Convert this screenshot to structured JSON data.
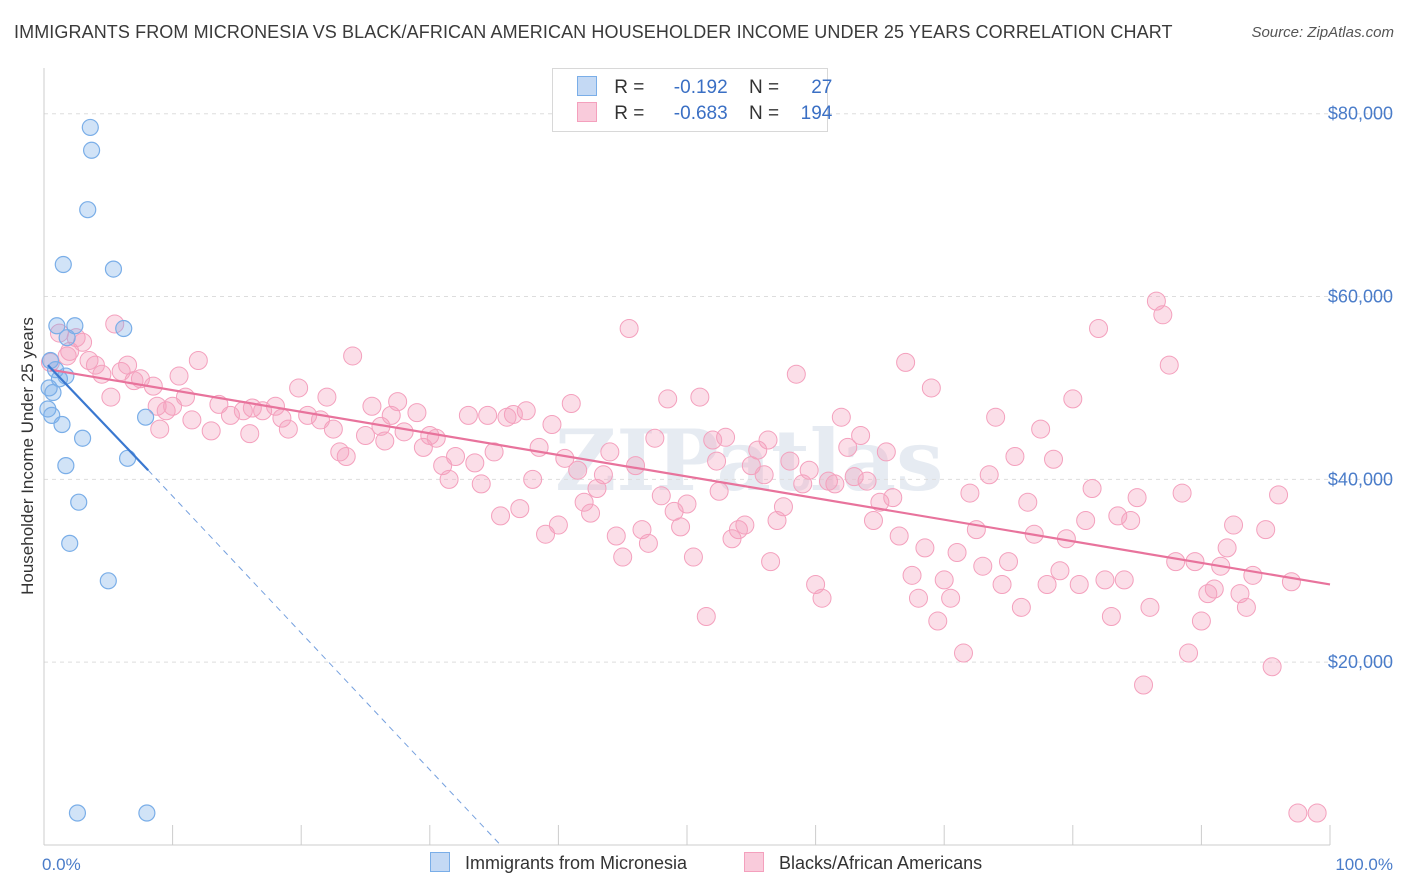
{
  "title": "IMMIGRANTS FROM MICRONESIA VS BLACK/AFRICAN AMERICAN HOUSEHOLDER INCOME UNDER 25 YEARS CORRELATION CHART",
  "source": "Source: ZipAtlas.com",
  "colors": {
    "blue": "#7aaee8",
    "blue_line": "#3a78d0",
    "pink": "#f4a0bd",
    "pink_line": "#e8739c",
    "grid": "#dddddd"
  },
  "legend": {
    "r_label": "R =",
    "n_label": "N =",
    "series1": {
      "r": "-0.192",
      "n": "27"
    },
    "series2": {
      "r": "-0.683",
      "n": "194"
    }
  },
  "chart_data": {
    "type": "scatter",
    "ylabel": "Householder Income Under 25 years",
    "xlim": [
      0,
      100
    ],
    "ylim": [
      0,
      85000
    ],
    "x_tick_labels": [
      "0.0%",
      "100.0%"
    ],
    "y_ticks": [
      20000,
      40000,
      60000,
      80000
    ],
    "y_tick_labels": [
      "$20,000",
      "$40,000",
      "$60,000",
      "$80,000"
    ],
    "grid": "horizontal dashed",
    "series": [
      {
        "name": "Immigrants from Micronesia",
        "color": "#7aaee8",
        "points": [
          [
            3.6,
            78500
          ],
          [
            3.7,
            76000
          ],
          [
            3.4,
            69500
          ],
          [
            1.5,
            63500
          ],
          [
            5.4,
            63000
          ],
          [
            1.0,
            56800
          ],
          [
            2.4,
            56800
          ],
          [
            6.2,
            56500
          ],
          [
            0.5,
            53000
          ],
          [
            1.2,
            51000
          ],
          [
            1.7,
            51300
          ],
          [
            0.4,
            50000
          ],
          [
            0.3,
            47700
          ],
          [
            0.6,
            47000
          ],
          [
            7.9,
            46800
          ],
          [
            1.4,
            46000
          ],
          [
            3.0,
            44500
          ],
          [
            1.7,
            41500
          ],
          [
            6.5,
            42300
          ],
          [
            2.7,
            37500
          ],
          [
            2.0,
            33000
          ],
          [
            5.0,
            28900
          ],
          [
            2.6,
            3500
          ],
          [
            8.0,
            3500
          ],
          [
            0.9,
            52000
          ],
          [
            1.8,
            55500
          ],
          [
            0.7,
            49500
          ]
        ],
        "trend": {
          "x": [
            0.3,
            8.1
          ],
          "y": [
            52500,
            41000
          ]
        },
        "trend_extended": {
          "x": [
            8.1,
            35.5
          ],
          "y": [
            41000,
            0
          ]
        }
      },
      {
        "name": "Blacks/African Americans",
        "color": "#f4a0bd",
        "points": [
          [
            1.2,
            56000
          ],
          [
            2.5,
            55500
          ],
          [
            5.5,
            57000
          ],
          [
            1.8,
            53500
          ],
          [
            3.5,
            53000
          ],
          [
            6.5,
            52500
          ],
          [
            0.5,
            52800
          ],
          [
            4.5,
            51500
          ],
          [
            7.5,
            51000
          ],
          [
            10.5,
            51300
          ],
          [
            8.5,
            50200
          ],
          [
            12.0,
            53000
          ],
          [
            5.2,
            49000
          ],
          [
            8.8,
            48000
          ],
          [
            10.0,
            48000
          ],
          [
            11.5,
            46500
          ],
          [
            9.0,
            45500
          ],
          [
            13.0,
            45300
          ],
          [
            13.6,
            48200
          ],
          [
            14.5,
            47000
          ],
          [
            15.5,
            47500
          ],
          [
            16.2,
            47800
          ],
          [
            17.0,
            47500
          ],
          [
            18.0,
            48000
          ],
          [
            19.0,
            45500
          ],
          [
            19.8,
            50000
          ],
          [
            20.5,
            47000
          ],
          [
            21.5,
            46500
          ],
          [
            22.0,
            49000
          ],
          [
            22.5,
            45500
          ],
          [
            23.0,
            43000
          ],
          [
            23.5,
            42500
          ],
          [
            24.0,
            53500
          ],
          [
            25.0,
            44800
          ],
          [
            25.5,
            48000
          ],
          [
            26.2,
            45800
          ],
          [
            27.0,
            47000
          ],
          [
            27.5,
            48500
          ],
          [
            28.0,
            45200
          ],
          [
            29.0,
            47300
          ],
          [
            29.5,
            43500
          ],
          [
            30.5,
            44500
          ],
          [
            31.0,
            41500
          ],
          [
            31.5,
            40000
          ],
          [
            32.0,
            42500
          ],
          [
            33.0,
            47000
          ],
          [
            33.5,
            41800
          ],
          [
            34.5,
            47000
          ],
          [
            35.0,
            43000
          ],
          [
            35.5,
            36000
          ],
          [
            36.0,
            46800
          ],
          [
            37.0,
            36800
          ],
          [
            37.5,
            47500
          ],
          [
            38.0,
            40000
          ],
          [
            38.5,
            43500
          ],
          [
            39.0,
            34000
          ],
          [
            39.5,
            46000
          ],
          [
            40.0,
            35000
          ],
          [
            40.5,
            42300
          ],
          [
            41.0,
            48300
          ],
          [
            41.5,
            41000
          ],
          [
            42.0,
            37500
          ],
          [
            42.5,
            36300
          ],
          [
            43.0,
            39000
          ],
          [
            43.5,
            40500
          ],
          [
            44.0,
            43000
          ],
          [
            44.5,
            33800
          ],
          [
            45.0,
            31500
          ],
          [
            45.5,
            56500
          ],
          [
            46.0,
            41500
          ],
          [
            46.5,
            34500
          ],
          [
            47.0,
            33000
          ],
          [
            47.5,
            44500
          ],
          [
            48.0,
            38200
          ],
          [
            48.5,
            48800
          ],
          [
            49.0,
            36500
          ],
          [
            49.5,
            34800
          ],
          [
            50.0,
            37300
          ],
          [
            50.5,
            31500
          ],
          [
            51.0,
            49000
          ],
          [
            51.5,
            25000
          ],
          [
            52.0,
            44300
          ],
          [
            52.5,
            38700
          ],
          [
            53.0,
            44600
          ],
          [
            53.5,
            33500
          ],
          [
            54.0,
            34500
          ],
          [
            54.5,
            35000
          ],
          [
            55.0,
            41500
          ],
          [
            55.5,
            43200
          ],
          [
            56.0,
            40500
          ],
          [
            56.5,
            31000
          ],
          [
            57.0,
            35500
          ],
          [
            57.5,
            37000
          ],
          [
            58.0,
            42000
          ],
          [
            58.5,
            51500
          ],
          [
            59.0,
            39500
          ],
          [
            59.5,
            41000
          ],
          [
            60.0,
            28500
          ],
          [
            60.5,
            27000
          ],
          [
            61.0,
            39800
          ],
          [
            61.5,
            39500
          ],
          [
            62.0,
            46800
          ],
          [
            62.5,
            43500
          ],
          [
            63.0,
            40300
          ],
          [
            63.5,
            44800
          ],
          [
            64.0,
            39800
          ],
          [
            64.5,
            35500
          ],
          [
            65.0,
            37500
          ],
          [
            65.5,
            43000
          ],
          [
            66.0,
            38000
          ],
          [
            66.5,
            33800
          ],
          [
            67.0,
            52800
          ],
          [
            67.5,
            29500
          ],
          [
            68.0,
            27000
          ],
          [
            68.5,
            32500
          ],
          [
            69.0,
            50000
          ],
          [
            69.5,
            24500
          ],
          [
            70.0,
            29000
          ],
          [
            70.5,
            27000
          ],
          [
            71.0,
            32000
          ],
          [
            71.5,
            21000
          ],
          [
            72.0,
            38500
          ],
          [
            72.5,
            34500
          ],
          [
            73.0,
            30500
          ],
          [
            73.5,
            40500
          ],
          [
            74.0,
            46800
          ],
          [
            74.5,
            28500
          ],
          [
            75.0,
            31000
          ],
          [
            75.5,
            42500
          ],
          [
            76.0,
            26000
          ],
          [
            76.5,
            37500
          ],
          [
            77.0,
            34000
          ],
          [
            77.5,
            45500
          ],
          [
            78.0,
            28500
          ],
          [
            78.5,
            42200
          ],
          [
            79.0,
            30000
          ],
          [
            79.5,
            33500
          ],
          [
            80.0,
            48800
          ],
          [
            80.5,
            28500
          ],
          [
            81.0,
            35500
          ],
          [
            81.5,
            39000
          ],
          [
            82.0,
            56500
          ],
          [
            82.5,
            29000
          ],
          [
            83.0,
            25000
          ],
          [
            83.5,
            36000
          ],
          [
            84.0,
            29000
          ],
          [
            84.5,
            35500
          ],
          [
            85.0,
            38000
          ],
          [
            85.5,
            17500
          ],
          [
            86.0,
            26000
          ],
          [
            86.5,
            59500
          ],
          [
            87.0,
            58000
          ],
          [
            87.5,
            52500
          ],
          [
            88.0,
            31000
          ],
          [
            88.5,
            38500
          ],
          [
            89.0,
            21000
          ],
          [
            89.5,
            31000
          ],
          [
            90.0,
            24500
          ],
          [
            90.5,
            27500
          ],
          [
            91.0,
            28000
          ],
          [
            91.5,
            30500
          ],
          [
            92.0,
            32500
          ],
          [
            92.5,
            35000
          ],
          [
            93.0,
            27500
          ],
          [
            93.5,
            26000
          ],
          [
            94.0,
            29500
          ],
          [
            95.0,
            34500
          ],
          [
            95.5,
            19500
          ],
          [
            96.0,
            38300
          ],
          [
            97.0,
            28800
          ],
          [
            97.5,
            3500
          ],
          [
            99.0,
            3500
          ],
          [
            2.0,
            54000
          ],
          [
            3.0,
            55000
          ],
          [
            4.0,
            52500
          ],
          [
            6.0,
            51800
          ],
          [
            7.0,
            50800
          ],
          [
            9.5,
            47500
          ],
          [
            11.0,
            49000
          ],
          [
            16.0,
            45000
          ],
          [
            18.5,
            46700
          ],
          [
            26.5,
            44200
          ],
          [
            30.0,
            44800
          ],
          [
            34.0,
            39500
          ],
          [
            36.5,
            47100
          ],
          [
            52.3,
            42000
          ],
          [
            56.3,
            44300
          ]
        ],
        "trend": {
          "x": [
            0.5,
            100
          ],
          "y": [
            52000,
            28500
          ]
        }
      }
    ]
  },
  "bottom_legend": {
    "series1": "Immigrants from Micronesia",
    "series2": "Blacks/African Americans"
  },
  "watermark": "ZIPatlas"
}
